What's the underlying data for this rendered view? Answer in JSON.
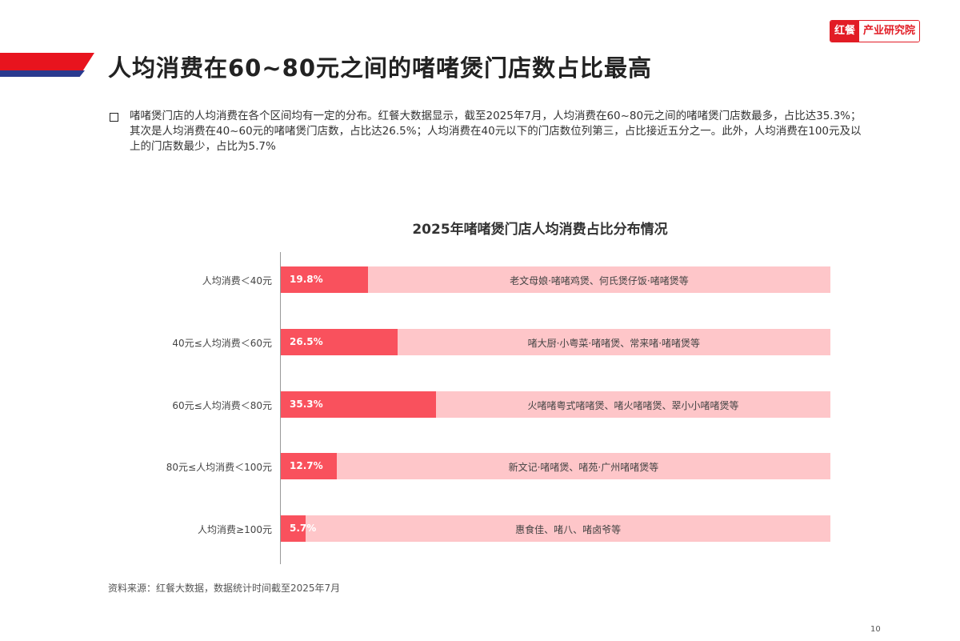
{
  "header": {
    "title": "人均消费在60~80元之间的啫啫煲门店数占比最高",
    "logo_red": "红餐",
    "logo_text": "产业研究院"
  },
  "summary": "啫啫煲门店的人均消费在各个区间均有一定的分布。红餐大数据显示，截至2025年7月，人均消费在60~80元之间的啫啫煲门店数最多，占比达35.3%；其次是人均消费在40~60元的啫啫煲门店数，占比达26.5%；人均消费在40元以下的门店数位列第三，占比接近五分之一。此外，人均消费在100元及以上的门店数最少，占比为5.7%",
  "chart_data": {
    "type": "bar",
    "orientation": "horizontal",
    "title": "2025年啫啫煲门店人均消费占比分布情况",
    "categories": [
      "人均消费＜40元",
      "40元≤人均消费＜60元",
      "60元≤人均消费＜80元",
      "80元≤人均消费＜100元",
      "人均消费≥100元"
    ],
    "values": [
      19.8,
      26.5,
      35.3,
      12.7,
      5.7
    ],
    "value_labels": [
      "19.8%",
      "26.5%",
      "35.3%",
      "12.7%",
      "5.7%"
    ],
    "annotations": [
      "老文母娘·啫啫鸡煲、何氏煲仔饭·啫啫煲等",
      "啫大厨·小粤菜·啫啫煲、常来啫·啫啫煲等",
      "火啫啫粤式啫啫煲、啫火啫啫煲、翠小小啫啫煲等",
      "新文记·啫啫煲、啫苑·广州啫啫煲等",
      "惠食佳、啫八、啫卤爷等"
    ],
    "xlim": [
      0,
      125
    ],
    "colors": {
      "bar": "#f9515d",
      "track": "#fec6c9"
    }
  },
  "footer": {
    "source": "资料来源：红餐大数据，数据统计时间截至2025年7月",
    "page": "10"
  }
}
